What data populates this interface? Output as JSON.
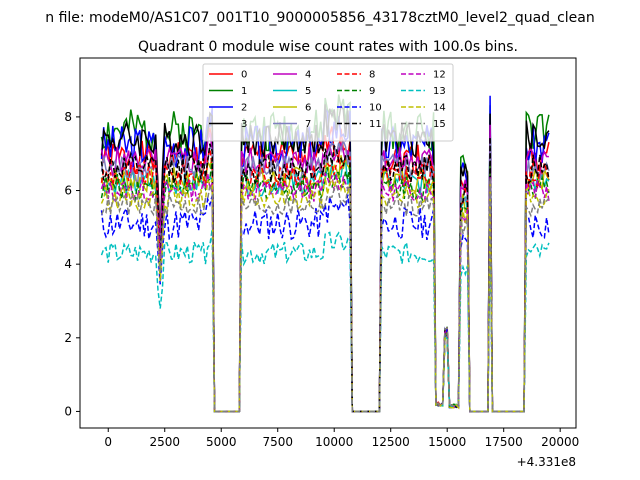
{
  "chart_data": {
    "type": "line",
    "suptitle": "n file: modeM0/AS1C07_001T10_9000005856_43178cztM0_level2_quad_clean",
    "title": "Quadrant 0 module wise count rates with 100.0s bins.",
    "xlabel": "",
    "ylabel": "",
    "x_offset_label": "+4.331e8",
    "xlim": [
      -1250,
      20700
    ],
    "ylim": [
      -0.45,
      9.6
    ],
    "xticks": [
      0,
      2500,
      5000,
      7500,
      10000,
      12500,
      15000,
      17500,
      20000
    ],
    "xtick_labels": [
      "0",
      "2500",
      "5000",
      "7500",
      "10000",
      "12500",
      "15000",
      "17500",
      "20000"
    ],
    "yticks": [
      0,
      2,
      4,
      6,
      8
    ],
    "ytick_labels": [
      "0",
      "2",
      "4",
      "6",
      "8"
    ],
    "grid": false,
    "legend_position": "upper center",
    "x_range": [
      -300,
      19500
    ],
    "bin_seconds": 100,
    "gaps": [
      [
        4700,
        5800
      ],
      [
        10800,
        12000
      ],
      [
        16000,
        16800
      ],
      [
        17000,
        18400
      ]
    ],
    "dips": [
      [
        14600,
        0.1
      ],
      [
        15600,
        0.1
      ]
    ],
    "spike": [
      15000,
      2.3
    ],
    "series": [
      {
        "name": "0",
        "color": "#ff0000",
        "dash": "solid",
        "base": 6.9,
        "amp": 0.45,
        "seed": 1
      },
      {
        "name": "1",
        "color": "#008000",
        "dash": "solid",
        "base": 7.6,
        "amp": 0.6,
        "seed": 2
      },
      {
        "name": "2",
        "color": "#0000ff",
        "dash": "solid",
        "base": 7.2,
        "amp": 0.6,
        "seed": 3
      },
      {
        "name": "3",
        "color": "#000000",
        "dash": "solid",
        "base": 7.4,
        "amp": 0.5,
        "seed": 4
      },
      {
        "name": "4",
        "color": "#bf00bf",
        "dash": "solid",
        "base": 6.8,
        "amp": 0.4,
        "seed": 5
      },
      {
        "name": "5",
        "color": "#00bfbf",
        "dash": "solid",
        "base": 6.2,
        "amp": 0.35,
        "seed": 6
      },
      {
        "name": "6",
        "color": "#bfbf00",
        "dash": "solid",
        "base": 6.3,
        "amp": 0.35,
        "seed": 7
      },
      {
        "name": "7",
        "color": "#7f7fbf",
        "dash": "solid",
        "base": 6.6,
        "amp": 0.4,
        "seed": 8
      },
      {
        "name": "8",
        "color": "#ff0000",
        "dash": "dashed",
        "base": 6.4,
        "amp": 0.35,
        "seed": 9
      },
      {
        "name": "9",
        "color": "#008000",
        "dash": "dashed",
        "base": 6.1,
        "amp": 0.35,
        "seed": 10
      },
      {
        "name": "10",
        "color": "#0000ff",
        "dash": "dashed",
        "base": 5.1,
        "amp": 0.45,
        "seed": 11
      },
      {
        "name": "11",
        "color": "#000000",
        "dash": "dashed",
        "base": 6.6,
        "amp": 0.4,
        "seed": 12
      },
      {
        "name": "12",
        "color": "#bf00bf",
        "dash": "dashed",
        "base": 6.0,
        "amp": 0.3,
        "seed": 13
      },
      {
        "name": "13",
        "color": "#00bfbf",
        "dash": "dashed",
        "base": 4.3,
        "amp": 0.3,
        "seed": 14
      },
      {
        "name": "14",
        "color": "#bfbf00",
        "dash": "dashed",
        "base": 5.8,
        "amp": 0.3,
        "seed": 15
      },
      {
        "name": "15",
        "color": "#7f7f7f",
        "dash": "dashed",
        "base": 5.6,
        "amp": 0.3,
        "seed": 16
      }
    ]
  }
}
